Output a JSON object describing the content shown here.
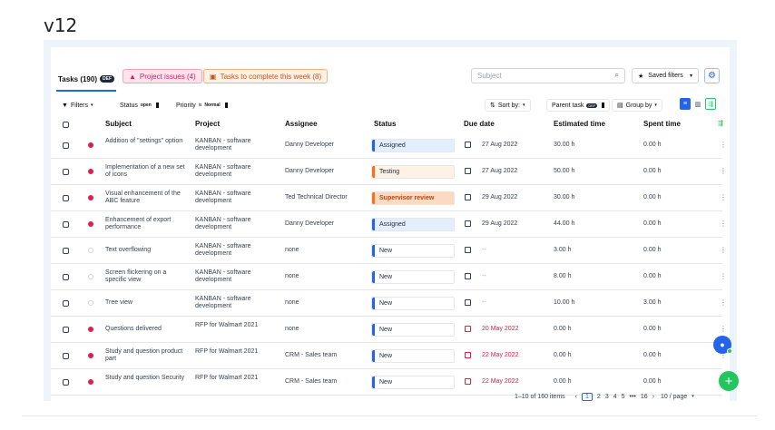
{
  "version_label": "v12",
  "tabs": {
    "main_label": "Tasks (190)",
    "main_badge": "DEF",
    "project_issues": "Project issues (4)",
    "tasks_week": "Tasks to complete this week (8)"
  },
  "search": {
    "placeholder": "Subject"
  },
  "saved_filters": "Saved filters",
  "filters": {
    "filters_label": "Filters",
    "status_key": "Status",
    "status_value": "open",
    "priority_key": "Priority",
    "priority_op": "is",
    "priority_value": "Normal",
    "sort_label": "Sort by:",
    "parent_label": "Parent task",
    "parent_badge": "DEF",
    "group_label": "Group by"
  },
  "columns": [
    "Subject",
    "Project",
    "Assignee",
    "Status",
    "Due date",
    "Estimated time",
    "Spent time"
  ],
  "rows": [
    {
      "subject": "Addition of \"settings\" option",
      "project": "KANBAN - software development",
      "assignee": "Danny Developer",
      "status": "Assigned",
      "due": "27 Aug 2022",
      "est": "30.00 h",
      "spent": "0.00 h"
    },
    {
      "subject": "Implementation of a new set of icons",
      "project": "KANBAN - software development",
      "assignee": "Danny Developer",
      "status": "Testing",
      "due": "27 Aug 2022",
      "est": "50.00 h",
      "spent": "0.00 h"
    },
    {
      "subject": "Visual enhancement of the ABC feature",
      "project": "KANBAN - software development",
      "assignee": "Ted Technical Director",
      "status": "Supervisor review",
      "due": "29 Aug 2022",
      "est": "30.00 h",
      "spent": "0.00 h"
    },
    {
      "subject": "Enhancement of export performance",
      "project": "KANBAN - software development",
      "assignee": "Danny Developer",
      "status": "Assigned",
      "due": "29 Aug 2022",
      "est": "44.00 h",
      "spent": "0.00 h"
    },
    {
      "subject": "Text overflowing",
      "project": "KANBAN - software development",
      "assignee": "none",
      "status": "New",
      "due": "--",
      "est": "3.00 h",
      "spent": "0.00 h"
    },
    {
      "subject": "Screen flickering on a specific view",
      "project": "KANBAN - software development",
      "assignee": "none",
      "status": "New",
      "due": "--",
      "est": "8.00 h",
      "spent": "0.00 h"
    },
    {
      "subject": "Tree view",
      "project": "KANBAN - software development",
      "assignee": "none",
      "status": "New",
      "due": "--",
      "est": "10.00 h",
      "spent": "3.00 h"
    },
    {
      "subject": "Questions delivered",
      "project": "RFP for Walmart 2021",
      "assignee": "none",
      "status": "New",
      "due": "20 May 2022",
      "est": "0.00 h",
      "spent": "0.00 h"
    },
    {
      "subject": "Study and question product part",
      "project": "RFP for Walmart 2021",
      "assignee": "CRM - Sales team",
      "status": "New",
      "due": "22 May 2022",
      "est": "0.00 h",
      "spent": "0.00 h"
    },
    {
      "subject": "Study and question Security",
      "project": "RFP for Walmart 2021",
      "assignee": "CRM - Sales team",
      "status": "New",
      "due": "22 May 2022",
      "est": "0.00 h",
      "spent": "0.00 h"
    }
  ],
  "pagination": {
    "range": "1–10 of 160 items",
    "prev": "‹",
    "pages": [
      "1",
      "2",
      "3",
      "4",
      "5"
    ],
    "ellipsis": "•••",
    "last": "16",
    "next": "›",
    "per_page": "10 / page"
  },
  "colors": {
    "accent": "#2563eb",
    "assigned_bg": "#e3efff",
    "testing_bg": "#fff1e4",
    "review_bg": "#fbd9c2",
    "danger": "#e11d48",
    "add": "#22c55e"
  }
}
